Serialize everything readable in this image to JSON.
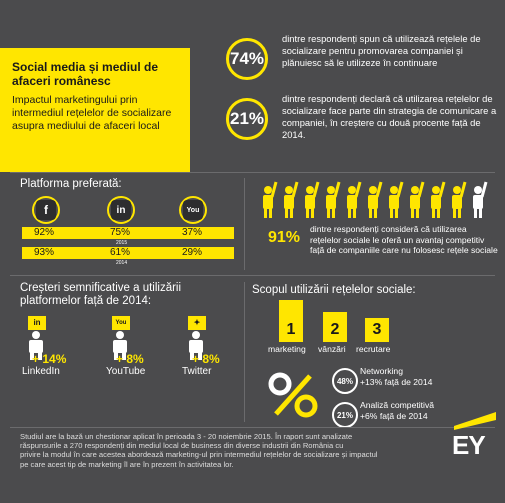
{
  "header": {
    "title": "Social media și mediul de afaceri românesc",
    "subtitle": "Impactul marketingului prin intermediul rețelelor de socializare asupra mediului de afaceri local"
  },
  "stats_top": [
    {
      "value": "74%",
      "text": "dintre respondenți spun că utilizează rețelele de socializare pentru promovarea companiei și plănuiesc să le utilizeze în continuare"
    },
    {
      "value": "21%",
      "text": "dintre respondenți declară că utilizarea rețelelor de socializare face parte din strategia de comunicare a companiei, în creștere cu două procente față de 2014."
    }
  ],
  "platform": {
    "title": "Platforma preferată:",
    "icons": [
      "facebook-icon",
      "linkedin-icon",
      "youtube-icon"
    ],
    "row_2015": {
      "label": "2015",
      "values": [
        "92%",
        "75%",
        "37%"
      ]
    },
    "row_2014": {
      "label": "2014",
      "values": [
        "93%",
        "61%",
        "29%"
      ]
    }
  },
  "advantage": {
    "value": "91%",
    "text": "dintre respondenți consideră că utilizarea rețelelor sociale le oferă un avantaj competitiv față de companiile care nu folosesc rețele sociale",
    "people_highlighted": 10,
    "people_total": 11
  },
  "growth": {
    "title": "Creșteri semnificative a utilizării platformelor față de 2014:",
    "items": [
      {
        "icon": "linkedin-icon",
        "badge": "in",
        "value": "+ 14%",
        "name": "LinkedIn"
      },
      {
        "icon": "youtube-icon",
        "badge": "You",
        "value": "+ 8%",
        "name": "YouTube"
      },
      {
        "icon": "twitter-icon",
        "badge": "🐦",
        "value": "+ 8%",
        "name": "Twitter"
      }
    ]
  },
  "purpose": {
    "title": "Scopul utilizării rețelelor sociale:",
    "ranks": [
      {
        "num": "1",
        "label": "marketing"
      },
      {
        "num": "2",
        "label": "vânzări"
      },
      {
        "num": "3",
        "label": "recrutare"
      }
    ],
    "extras": [
      {
        "value": "48%",
        "line1": "Networking",
        "line2": "+13% față de 2014"
      },
      {
        "value": "21%",
        "line1": "Analiză competitivă",
        "line2": "+6% față de 2014"
      }
    ]
  },
  "footer": {
    "lines": [
      "Studiul are la bază un chestionar aplicat în perioada 3 - 20 noiembrie 2015. În raport sunt analizate",
      "răspunsurile a 270 respondenți din mediul local de business  din diverse industrii din România cu",
      "privire la modul în care acestea abordează marketing-ul prin intermediul rețelelor de socializare și impactul",
      "pe care acest tip de marketing îl are în prezent în activitatea lor."
    ],
    "logo": "EY"
  },
  "colors": {
    "accent": "#ffe600",
    "background": "#4b4b4d",
    "dark": "#1a1a1a"
  }
}
